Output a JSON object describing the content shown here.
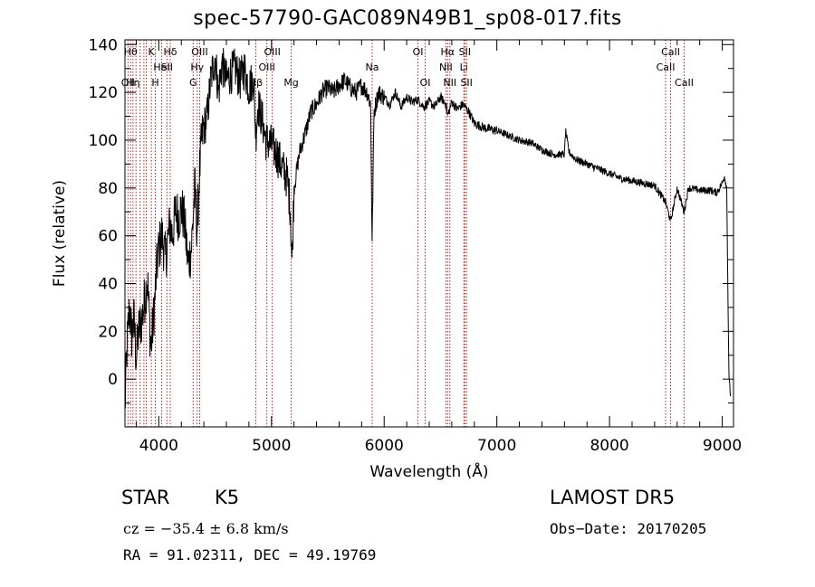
{
  "chart_data": {
    "type": "line",
    "title": "spec-57790-GAC089N49B1_sp08-017.fits",
    "xlabel": "Wavelength (Å)",
    "ylabel": "Flux (relative)",
    "xlim": [
      3700,
      9100
    ],
    "ylim": [
      -20,
      142
    ],
    "xticks": [
      4000,
      5000,
      6000,
      7000,
      8000,
      9000
    ],
    "yticks": [
      0,
      20,
      40,
      60,
      80,
      100,
      120,
      140
    ],
    "line_color": "#000000",
    "marker_color": "#b22222",
    "grid": false,
    "spectrum_anchors": [
      [
        3700,
        -12
      ],
      [
        3720,
        15
      ],
      [
        3740,
        30
      ],
      [
        3760,
        18
      ],
      [
        3780,
        25
      ],
      [
        3800,
        8
      ],
      [
        3820,
        20
      ],
      [
        3850,
        25
      ],
      [
        3880,
        35
      ],
      [
        3900,
        42
      ],
      [
        3930,
        12
      ],
      [
        3960,
        30
      ],
      [
        3980,
        45
      ],
      [
        4000,
        55
      ],
      [
        4030,
        60
      ],
      [
        4060,
        50
      ],
      [
        4080,
        58
      ],
      [
        4100,
        65
      ],
      [
        4120,
        60
      ],
      [
        4150,
        70
      ],
      [
        4180,
        68
      ],
      [
        4200,
        72
      ],
      [
        4230,
        65
      ],
      [
        4260,
        48
      ],
      [
        4290,
        55
      ],
      [
        4320,
        80
      ],
      [
        4340,
        62
      ],
      [
        4360,
        85
      ],
      [
        4380,
        100
      ],
      [
        4400,
        105
      ],
      [
        4430,
        110
      ],
      [
        4460,
        125
      ],
      [
        4500,
        135
      ],
      [
        4530,
        120
      ],
      [
        4560,
        132
      ],
      [
        4600,
        125
      ],
      [
        4640,
        128
      ],
      [
        4680,
        130
      ],
      [
        4720,
        125
      ],
      [
        4760,
        130
      ],
      [
        4800,
        122
      ],
      [
        4840,
        126
      ],
      [
        4861,
        102
      ],
      [
        4880,
        115
      ],
      [
        4920,
        108
      ],
      [
        4950,
        100
      ],
      [
        5000,
        98
      ],
      [
        5050,
        94
      ],
      [
        5100,
        88
      ],
      [
        5140,
        84
      ],
      [
        5167,
        72
      ],
      [
        5183,
        48
      ],
      [
        5200,
        80
      ],
      [
        5250,
        95
      ],
      [
        5300,
        103
      ],
      [
        5350,
        112
      ],
      [
        5400,
        115
      ],
      [
        5450,
        120
      ],
      [
        5500,
        122
      ],
      [
        5550,
        120
      ],
      [
        5600,
        123
      ],
      [
        5650,
        125
      ],
      [
        5700,
        122
      ],
      [
        5750,
        120
      ],
      [
        5800,
        123
      ],
      [
        5850,
        120
      ],
      [
        5880,
        115
      ],
      [
        5893,
        57
      ],
      [
        5910,
        112
      ],
      [
        5950,
        120
      ],
      [
        6000,
        118
      ],
      [
        6050,
        115
      ],
      [
        6100,
        120
      ],
      [
        6150,
        114
      ],
      [
        6200,
        118
      ],
      [
        6250,
        116
      ],
      [
        6300,
        117
      ],
      [
        6350,
        114
      ],
      [
        6400,
        116
      ],
      [
        6450,
        114
      ],
      [
        6500,
        118
      ],
      [
        6550,
        115
      ],
      [
        6563,
        110
      ],
      [
        6600,
        116
      ],
      [
        6650,
        113
      ],
      [
        6700,
        115
      ],
      [
        6750,
        112
      ],
      [
        6800,
        107
      ],
      [
        6850,
        106
      ],
      [
        6900,
        105
      ],
      [
        7000,
        104
      ],
      [
        7100,
        102
      ],
      [
        7200,
        100
      ],
      [
        7300,
        99
      ],
      [
        7400,
        96
      ],
      [
        7500,
        94
      ],
      [
        7600,
        94
      ],
      [
        7610,
        104
      ],
      [
        7640,
        95
      ],
      [
        7700,
        92
      ],
      [
        7800,
        90
      ],
      [
        7900,
        88
      ],
      [
        8000,
        86
      ],
      [
        8100,
        84
      ],
      [
        8200,
        83
      ],
      [
        8300,
        82
      ],
      [
        8400,
        81
      ],
      [
        8498,
        74
      ],
      [
        8542,
        66
      ],
      [
        8600,
        80
      ],
      [
        8662,
        70
      ],
      [
        8700,
        80
      ],
      [
        8800,
        79
      ],
      [
        8900,
        79
      ],
      [
        8950,
        78
      ],
      [
        9000,
        82
      ],
      [
        9020,
        85
      ],
      [
        9040,
        80
      ],
      [
        9050,
        37
      ],
      [
        9060,
        0
      ],
      [
        9080,
        -10
      ]
    ],
    "lines": [
      {
        "wavelength": 3727,
        "label": "OII",
        "row": 2
      },
      {
        "wavelength": 3750,
        "label": "Hθ",
        "row": 0
      },
      {
        "wavelength": 3771,
        "label": "Hη",
        "row": 2
      },
      {
        "wavelength": 3798,
        "label": "",
        "row": 0
      },
      {
        "wavelength": 3835,
        "label": "",
        "row": 0
      },
      {
        "wavelength": 3868,
        "label": "",
        "row": 1
      },
      {
        "wavelength": 3889,
        "label": "",
        "row": 0
      },
      {
        "wavelength": 3934,
        "label": "K",
        "row": 0
      },
      {
        "wavelength": 3969,
        "label": "H",
        "row": 2
      },
      {
        "wavelength": 4026,
        "label": "HeI",
        "row": 1
      },
      {
        "wavelength": 4072,
        "label": "SII",
        "row": 1
      },
      {
        "wavelength": 4102,
        "label": "Hδ",
        "row": 0
      },
      {
        "wavelength": 4305,
        "label": "G",
        "row": 2
      },
      {
        "wavelength": 4341,
        "label": "Hγ",
        "row": 1
      },
      {
        "wavelength": 4363,
        "label": "OIII",
        "row": 0
      },
      {
        "wavelength": 4861,
        "label": "Hβ",
        "row": 2
      },
      {
        "wavelength": 4959,
        "label": "OIII",
        "row": 1
      },
      {
        "wavelength": 5007,
        "label": "OIII",
        "row": 0
      },
      {
        "wavelength": 5175,
        "label": "Mg",
        "row": 2
      },
      {
        "wavelength": 5894,
        "label": "Na",
        "row": 1
      },
      {
        "wavelength": 6300,
        "label": "OI",
        "row": 0
      },
      {
        "wavelength": 6364,
        "label": "OI",
        "row": 2
      },
      {
        "wavelength": 6548,
        "label": "NII",
        "row": 1
      },
      {
        "wavelength": 6563,
        "label": "Hα",
        "row": 0
      },
      {
        "wavelength": 6583,
        "label": "NII",
        "row": 2
      },
      {
        "wavelength": 6707,
        "label": "Li",
        "row": 1
      },
      {
        "wavelength": 6716,
        "label": "SII",
        "row": 0
      },
      {
        "wavelength": 6731,
        "label": "SII",
        "row": 2
      },
      {
        "wavelength": 8498,
        "label": "CaII",
        "row": 1
      },
      {
        "wavelength": 8542,
        "label": "CaII",
        "row": 0
      },
      {
        "wavelength": 8662,
        "label": "CaII",
        "row": 2
      }
    ]
  },
  "info": {
    "obj_class": "STAR",
    "subclass": "K5",
    "survey": "LAMOST DR5",
    "cz_text": "cz = −35.4 ± 6.8 km/s",
    "obs_date": "Obs−Date: 20170205",
    "radec": "RA =  91.02311, DEC =  49.19769"
  }
}
